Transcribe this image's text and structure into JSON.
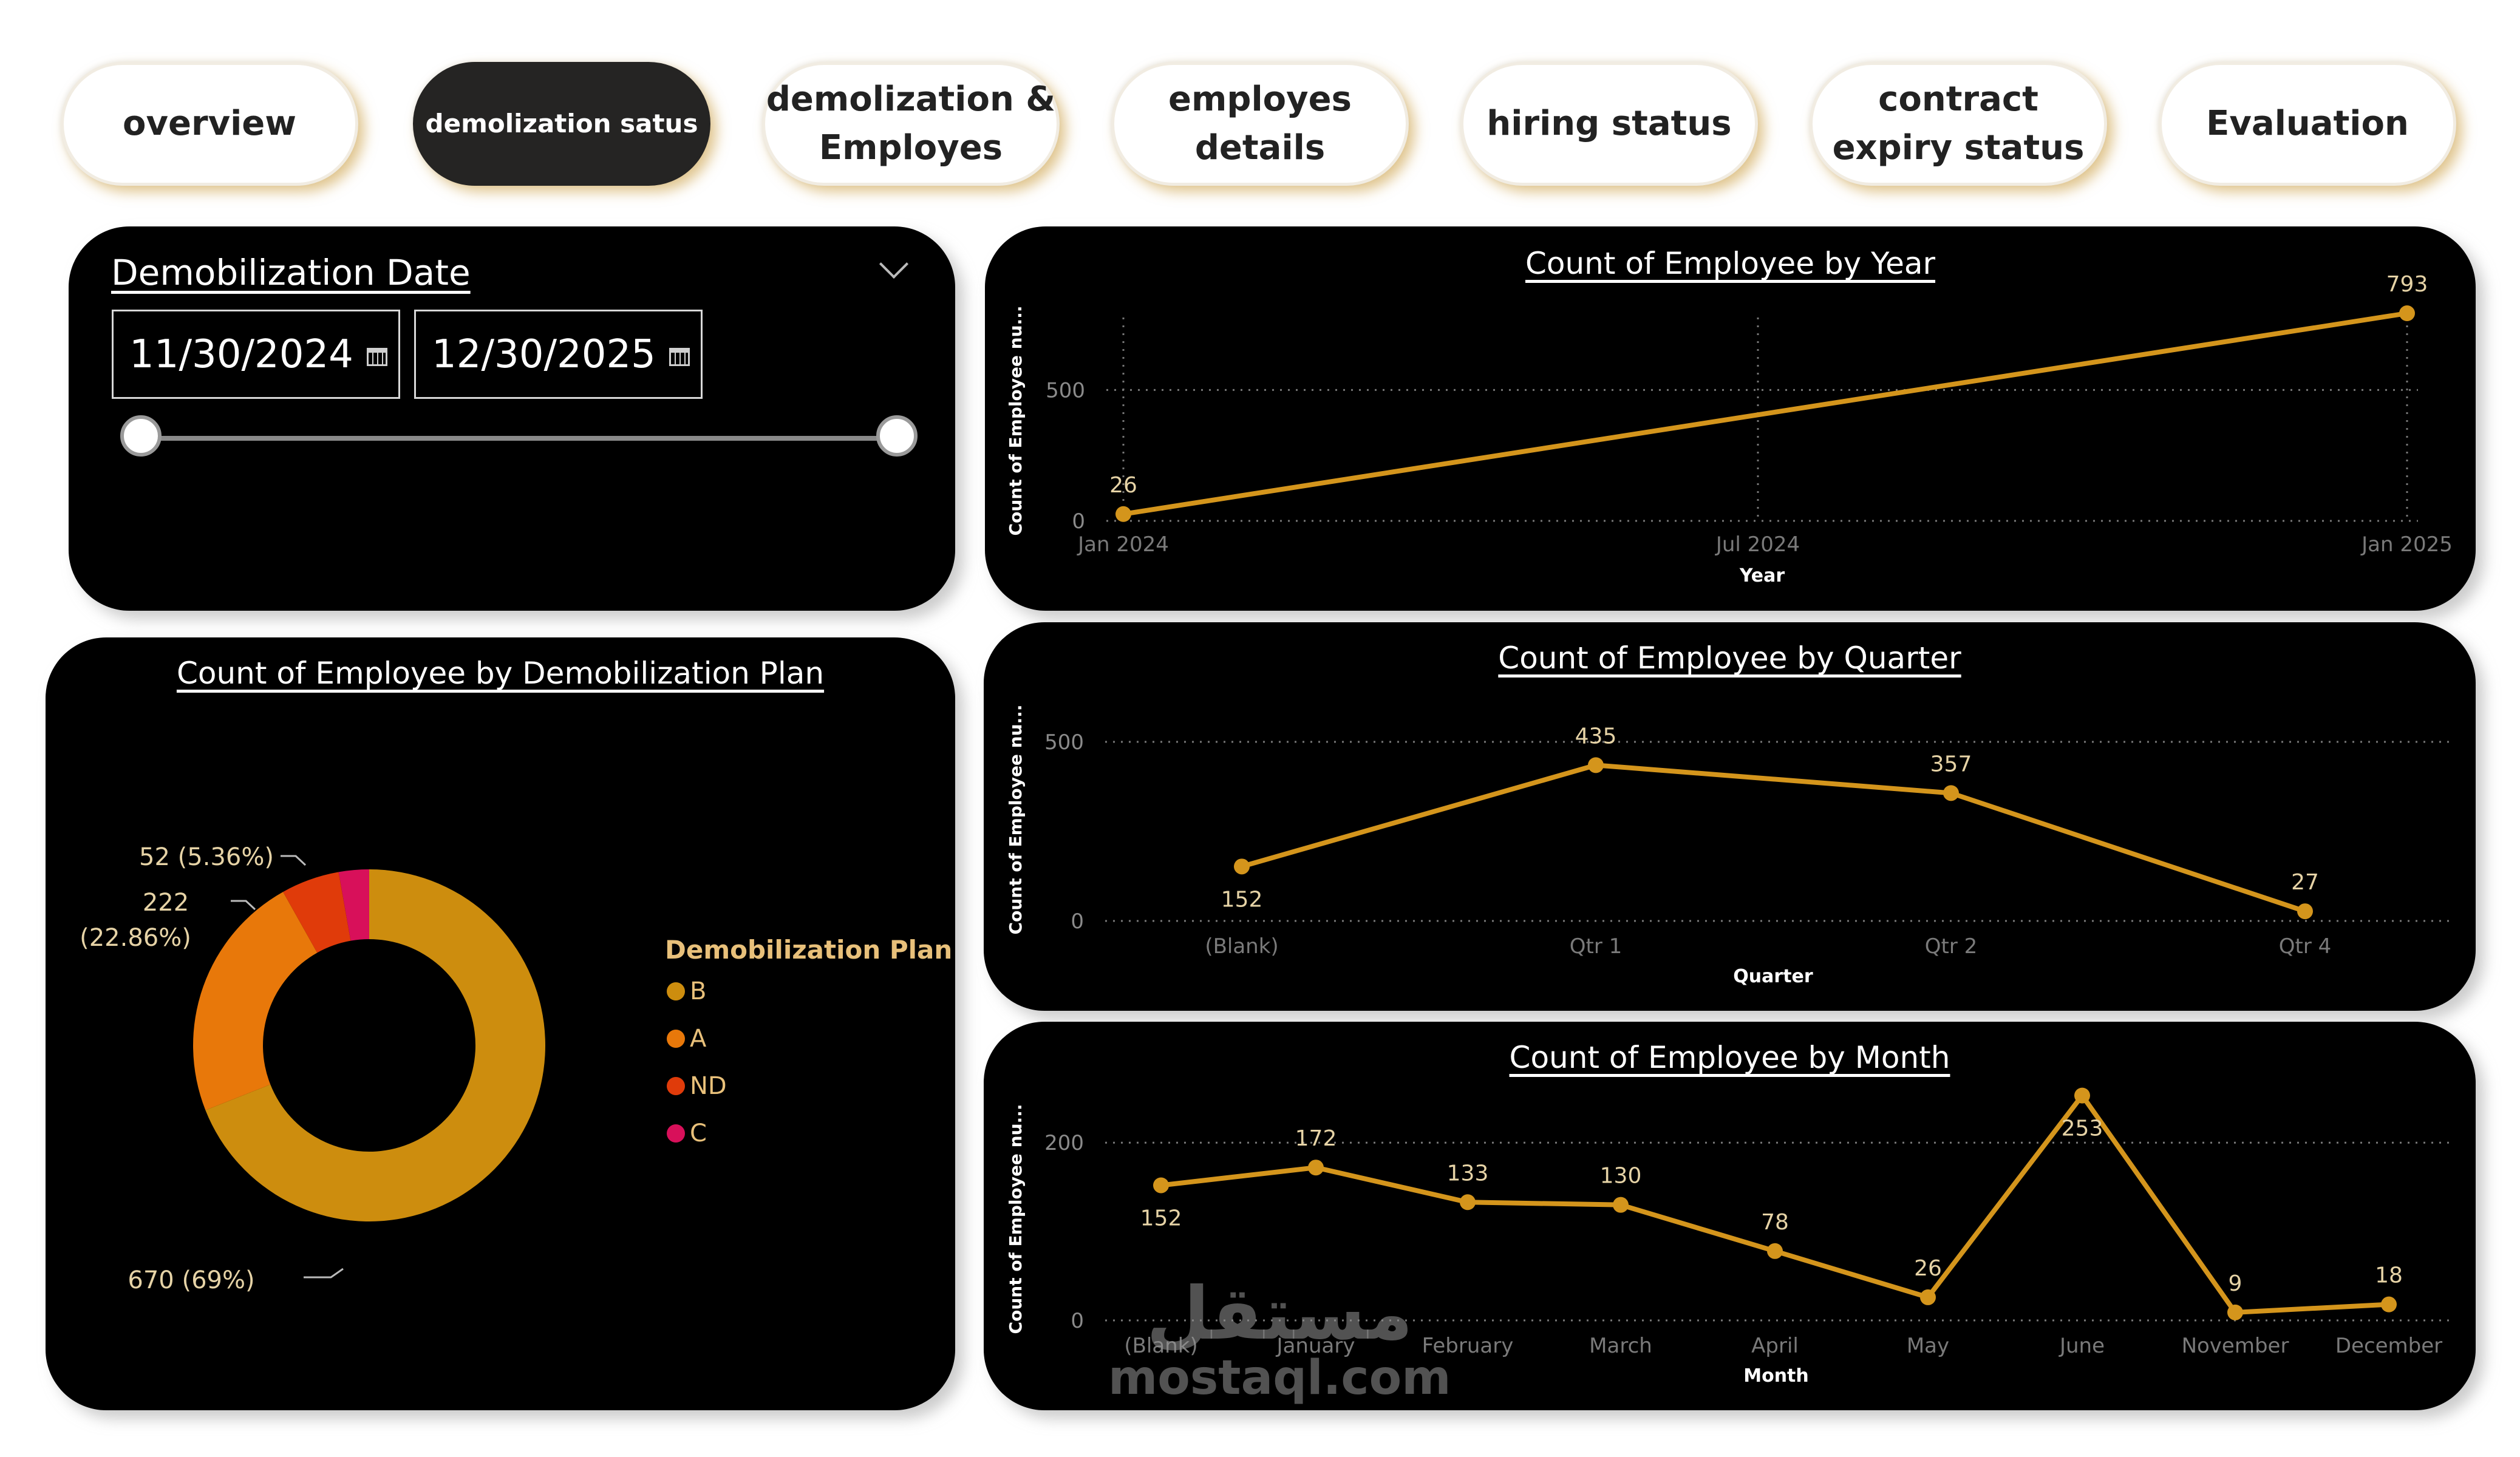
{
  "tabs": [
    {
      "label": "overview",
      "active": false
    },
    {
      "label": "demolization satus",
      "active": true
    },
    {
      "label": "demolization & Employes",
      "active": false
    },
    {
      "label": "employes details",
      "active": false
    },
    {
      "label": "hiring status",
      "active": false
    },
    {
      "label": "contract expiry status",
      "active": false
    },
    {
      "label": "Evaluation",
      "active": false
    }
  ],
  "date_slicer": {
    "title": "Demobilization Date",
    "start": "11/30/2024",
    "end": "12/30/2025"
  },
  "watermark": {
    "arabic": "مستقل",
    "latin": "mostaql.com"
  },
  "colors": {
    "line": "#d4951c",
    "accent": "#e8c07a"
  },
  "chart_data": [
    {
      "id": "year",
      "type": "line",
      "title": "Count of Employee by Year",
      "xlabel": "Year",
      "ylabel": "Count of Employee nu...",
      "x_ticks": [
        "Jan 2024",
        "Jul 2024",
        "Jan 2025"
      ],
      "y_ticks": [
        0,
        500
      ],
      "ylim": [
        0,
        800
      ],
      "points": [
        {
          "label": "Jan 2024",
          "value": 26
        },
        {
          "label": "Jan 2025",
          "value": 793
        }
      ]
    },
    {
      "id": "quarter",
      "type": "line",
      "title": "Count of Employee by Quarter",
      "xlabel": "Quarter",
      "ylabel": "Count of Employee nu...",
      "categories": [
        "(Blank)",
        "Qtr 1",
        "Qtr 2",
        "Qtr 4"
      ],
      "values": [
        152,
        435,
        357,
        27
      ],
      "y_ticks": [
        0,
        500
      ],
      "ylim": [
        0,
        500
      ]
    },
    {
      "id": "month",
      "type": "line",
      "title": "Count of Employee by Month",
      "xlabel": "Month",
      "ylabel": "Count of Employee nu...",
      "categories": [
        "(Blank)",
        "January",
        "February",
        "March",
        "April",
        "May",
        "June",
        "November",
        "December"
      ],
      "values": [
        152,
        172,
        133,
        130,
        78,
        26,
        253,
        9,
        18
      ],
      "y_ticks": [
        0,
        200
      ],
      "ylim": [
        0,
        250
      ]
    },
    {
      "id": "plan",
      "type": "pie",
      "title": "Count of Employee by Demobilization Plan",
      "legend_title": "Demobilization Plan",
      "slices": [
        {
          "label": "B",
          "value": 670,
          "data_label": "670 (69%)",
          "color": "#cd8d0e"
        },
        {
          "label": "A",
          "value": 222,
          "data_label": "222 (22.86%)",
          "color": "#e8780a"
        },
        {
          "label": "ND",
          "value": 52,
          "data_label": "52 (5.36%)",
          "color": "#e03b0a"
        },
        {
          "label": "C",
          "value": 27,
          "data_label": "",
          "color": "#d8105a"
        }
      ]
    }
  ]
}
